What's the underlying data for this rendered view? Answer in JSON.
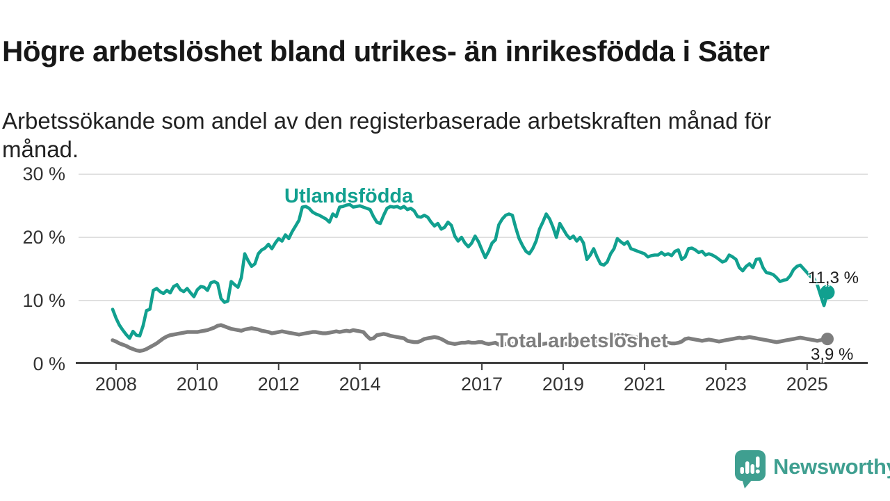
{
  "page": {
    "title": "Högre arbetslöshet bland utrikes- än inrikesfödda i Säter",
    "subtitle_line1": "Arbetssökande som andel av den registerbaserade arbetskraften månad för",
    "subtitle_line2": "månad."
  },
  "branding": {
    "logo_text": "Newsworthy",
    "logo_color": "#3f9f90",
    "logo_icon": "speech-bubble-bar-chart-exclamation"
  },
  "colors": {
    "grid": "#d9d9d9",
    "axis": "#3f3f3f",
    "tick_label": "#333333",
    "background": "#ffffff"
  },
  "chart_data": {
    "type": "line",
    "title": "Högre arbetslöshet bland utrikes- än inrikesfödda i Säter",
    "subtitle": "Arbetssökande som andel av den registerbaserade arbetskraften månad för månad.",
    "unit": "%",
    "frequency": "monthly",
    "x_start": "2007-12",
    "x_end": "2025-07",
    "grid": true,
    "ylim": [
      0,
      30
    ],
    "x_ticks": [
      2008,
      2010,
      2012,
      2014,
      2017,
      2019,
      2021,
      2023,
      2025
    ],
    "y_ticks": [
      {
        "value": 0,
        "label": "0 %"
      },
      {
        "value": 10,
        "label": "10 %"
      },
      {
        "value": 20,
        "label": "20 %"
      },
      {
        "value": 30,
        "label": "30 %"
      }
    ],
    "series": [
      {
        "name": "Utlandsfödda",
        "color": "#11a08f",
        "end_label": "11,3 %",
        "end_value": 11.3,
        "values": [
          8.6,
          7.2,
          6.1,
          5.3,
          4.6,
          4.0,
          5.1,
          4.5,
          4.4,
          6.0,
          8.4,
          8.6,
          11.6,
          11.9,
          11.4,
          11.1,
          11.6,
          11.2,
          12.2,
          12.5,
          11.7,
          11.4,
          11.9,
          11.2,
          10.6,
          11.7,
          12.2,
          12.1,
          11.6,
          12.8,
          13.0,
          12.7,
          10.3,
          9.7,
          9.9,
          13.0,
          12.5,
          12.1,
          13.6,
          17.4,
          16.3,
          15.4,
          15.8,
          17.4,
          18.0,
          18.3,
          18.9,
          18.2,
          19.1,
          19.8,
          19.4,
          20.4,
          19.8,
          20.9,
          21.8,
          22.7,
          24.8,
          24.9,
          24.6,
          24.0,
          23.7,
          23.5,
          23.2,
          22.9,
          22.4,
          23.7,
          23.3,
          24.8,
          24.9,
          25.1,
          25.2,
          24.8,
          24.9,
          25.0,
          24.8,
          24.6,
          24.4,
          23.3,
          22.4,
          22.2,
          23.5,
          24.6,
          24.9,
          24.8,
          24.9,
          24.6,
          24.9,
          24.4,
          24.6,
          24.2,
          23.3,
          23.2,
          23.5,
          23.2,
          22.4,
          21.8,
          22.2,
          21.3,
          21.6,
          22.4,
          21.9,
          20.2,
          19.4,
          20.0,
          19.1,
          18.5,
          19.1,
          20.2,
          19.3,
          18.0,
          16.8,
          17.8,
          19.1,
          19.6,
          22.0,
          22.9,
          23.5,
          23.7,
          23.5,
          21.5,
          19.8,
          18.7,
          17.8,
          17.4,
          18.2,
          19.4,
          21.3,
          22.4,
          23.7,
          22.9,
          21.6,
          20.0,
          22.2,
          21.3,
          20.4,
          19.8,
          20.2,
          19.4,
          20.0,
          19.1,
          16.5,
          17.2,
          18.2,
          16.9,
          15.8,
          15.6,
          16.1,
          17.4,
          18.2,
          19.8,
          19.3,
          18.9,
          19.3,
          18.2,
          18.0,
          17.8,
          17.6,
          17.4,
          16.9,
          17.1,
          17.2,
          17.2,
          17.6,
          17.2,
          17.4,
          17.1,
          17.8,
          18.0,
          16.5,
          16.9,
          18.2,
          18.3,
          18.0,
          17.6,
          17.8,
          17.2,
          17.4,
          17.2,
          16.9,
          16.5,
          16.1,
          16.3,
          17.2,
          16.9,
          16.5,
          15.2,
          14.7,
          15.4,
          15.8,
          15.2,
          16.5,
          16.6,
          15.2,
          14.4,
          14.3,
          14.1,
          13.6,
          13.0,
          13.2,
          13.3,
          13.9,
          14.9,
          15.4,
          15.6,
          15.0,
          14.4,
          13.8,
          13.5,
          12.5,
          10.8,
          9.2,
          11.3
        ]
      },
      {
        "name": "Total arbetslöshet",
        "color": "#7e7e7e",
        "end_label": "3,9 %",
        "end_value": 3.9,
        "values": [
          3.7,
          3.5,
          3.2,
          3.0,
          2.8,
          2.5,
          2.3,
          2.1,
          2.0,
          2.1,
          2.3,
          2.6,
          2.9,
          3.2,
          3.6,
          4.0,
          4.3,
          4.5,
          4.6,
          4.7,
          4.8,
          4.9,
          5.0,
          5.0,
          5.0,
          5.0,
          5.1,
          5.2,
          5.3,
          5.5,
          5.7,
          6.0,
          6.1,
          5.9,
          5.7,
          5.5,
          5.4,
          5.3,
          5.2,
          5.4,
          5.5,
          5.6,
          5.5,
          5.4,
          5.2,
          5.1,
          5.0,
          4.8,
          4.9,
          5.0,
          5.1,
          5.0,
          4.9,
          4.8,
          4.7,
          4.6,
          4.7,
          4.8,
          4.9,
          5.0,
          5.0,
          4.9,
          4.8,
          4.8,
          4.9,
          5.0,
          5.1,
          5.0,
          5.1,
          5.2,
          5.1,
          5.3,
          5.2,
          5.1,
          5.0,
          4.4,
          3.9,
          4.0,
          4.5,
          4.6,
          4.7,
          4.6,
          4.4,
          4.3,
          4.2,
          4.1,
          4.0,
          3.6,
          3.5,
          3.4,
          3.4,
          3.6,
          3.9,
          4.0,
          4.1,
          4.2,
          4.1,
          3.9,
          3.6,
          3.3,
          3.2,
          3.1,
          3.2,
          3.3,
          3.3,
          3.4,
          3.3,
          3.3,
          3.4,
          3.4,
          3.2,
          3.1,
          3.2,
          3.3,
          3.0,
          2.9,
          3.1,
          3.2,
          3.1,
          3.0,
          3.1,
          3.1,
          3.0,
          2.9,
          3.0,
          3.1,
          3.0,
          3.1,
          3.2,
          3.1,
          3.2,
          3.1,
          3.2,
          3.2,
          3.1,
          3.2,
          3.3,
          3.2,
          3.3,
          3.4,
          3.3,
          3.4,
          3.5,
          3.6,
          3.7,
          3.8,
          3.9,
          4.1,
          4.4,
          4.5,
          4.6,
          4.5,
          4.4,
          4.3,
          4.2,
          4.1,
          4.0,
          3.9,
          3.8,
          3.7,
          3.6,
          3.5,
          3.4,
          3.3,
          3.3,
          3.2,
          3.2,
          3.3,
          3.5,
          3.9,
          4.0,
          3.9,
          3.8,
          3.7,
          3.6,
          3.7,
          3.8,
          3.7,
          3.6,
          3.5,
          3.6,
          3.7,
          3.8,
          3.9,
          4.0,
          4.1,
          4.0,
          4.1,
          4.2,
          4.1,
          4.0,
          3.9,
          3.8,
          3.7,
          3.6,
          3.5,
          3.4,
          3.5,
          3.6,
          3.7,
          3.8,
          3.9,
          4.0,
          4.1,
          4.0,
          3.9,
          3.8,
          3.7,
          3.6,
          3.7,
          3.8,
          3.9
        ]
      }
    ]
  }
}
